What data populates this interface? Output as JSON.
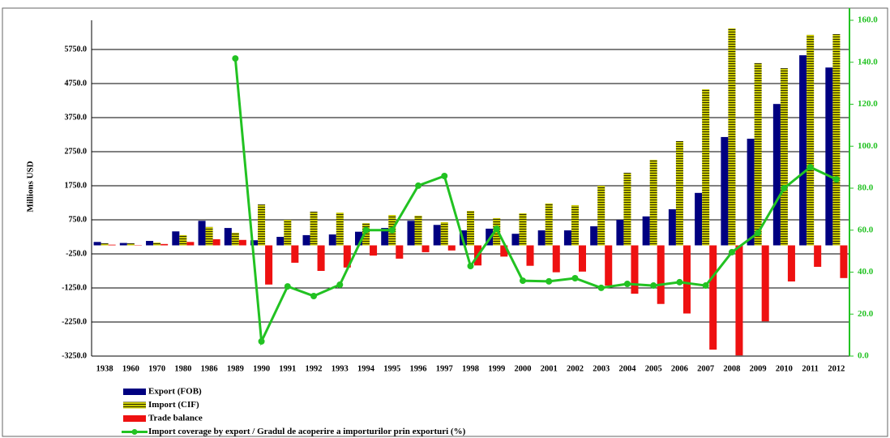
{
  "chart_data": {
    "type": "bar",
    "y_label": "Millions USD",
    "categories": [
      "1938",
      "1960",
      "1970",
      "1980",
      "1986",
      "1989",
      "1990",
      "1991",
      "1992",
      "1993",
      "1994",
      "1995",
      "1996",
      "1997",
      "1998",
      "1999",
      "2000",
      "2001",
      "2002",
      "2003",
      "2004",
      "2005",
      "2006",
      "2007",
      "2008",
      "2009",
      "2010",
      "2011",
      "2012"
    ],
    "series": [
      {
        "name": "Export (FOB)",
        "type": "bar",
        "color": "#000080",
        "values": [
          100,
          70,
          130,
          410,
          720,
          510,
          150,
          250,
          300,
          320,
          400,
          510,
          720,
          600,
          440,
          490,
          340,
          440,
          440,
          560,
          750,
          850,
          1060,
          1540,
          3180,
          3130,
          4150,
          5580,
          5220
        ]
      },
      {
        "name": "Import (CIF)",
        "type": "bar",
        "color": "#a8a800",
        "values": [
          60,
          60,
          80,
          300,
          540,
          370,
          1200,
          750,
          990,
          960,
          650,
          890,
          870,
          680,
          1010,
          800,
          940,
          1230,
          1180,
          1750,
          2130,
          2510,
          3060,
          4580,
          6370,
          5350,
          5200,
          6180,
          6200
        ]
      },
      {
        "name": "Trade balance",
        "type": "bar",
        "color": "#ee1111",
        "values": [
          20,
          10,
          40,
          100,
          180,
          160,
          -1150,
          -510,
          -750,
          -650,
          -300,
          -390,
          -200,
          -150,
          -590,
          -330,
          -600,
          -790,
          -770,
          -1180,
          -1420,
          -1720,
          -2000,
          -3060,
          -3230,
          -2230,
          -1060,
          -630,
          -960
        ]
      },
      {
        "name": "Import coverage by export / Gradul de acoperire a importurilor prin exporturi (%)",
        "type": "line",
        "axis": "y2",
        "color": "#22c222",
        "values": [
          null,
          null,
          null,
          null,
          null,
          141.8,
          7,
          33.2,
          28.6,
          34,
          60,
          60,
          81.2,
          85.8,
          42.9,
          60.7,
          35.9,
          35.6,
          37.1,
          32.5,
          34.4,
          33.6,
          35.2,
          33.6,
          49.5,
          58.7,
          80,
          90,
          84.2
        ]
      }
    ],
    "ylim": [
      -3250,
      6607
    ],
    "yticks": [
      {
        "value": -3250,
        "label": "-3250.0"
      },
      {
        "value": -2250,
        "label": "-2250.0"
      },
      {
        "value": -1250,
        "label": "-1250.0"
      },
      {
        "value": -250,
        "label": "-250.0"
      },
      {
        "value": 750,
        "label": "750.0"
      },
      {
        "value": 1750,
        "label": "1750.0"
      },
      {
        "value": 2750,
        "label": "2750.0"
      },
      {
        "value": 3750,
        "label": "3750.0"
      },
      {
        "value": 4750,
        "label": "4750.0"
      },
      {
        "value": 5750,
        "label": "5750.0"
      }
    ],
    "y2lim": [
      0,
      160
    ],
    "y2ticks": [
      {
        "value": 0,
        "label": "0.0"
      },
      {
        "value": 20,
        "label": "20.0"
      },
      {
        "value": 40,
        "label": "40.0"
      },
      {
        "value": 60,
        "label": "60.0"
      },
      {
        "value": 80,
        "label": "80.0"
      },
      {
        "value": 100,
        "label": "100.0"
      },
      {
        "value": 120,
        "label": "120.0"
      },
      {
        "value": 140,
        "label": "140.0"
      },
      {
        "value": 160,
        "label": "160.0"
      }
    ],
    "grid": true
  }
}
